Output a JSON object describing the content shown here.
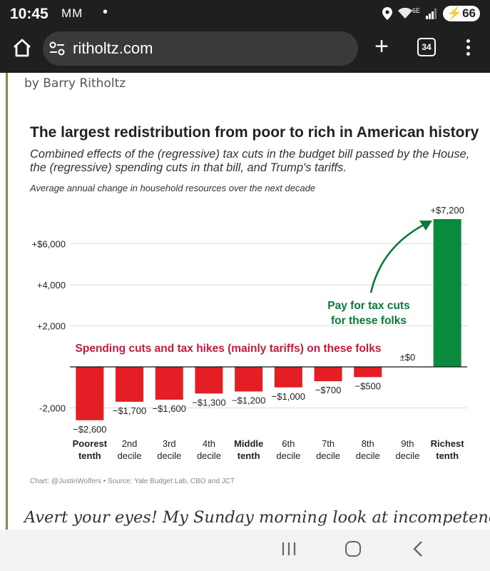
{
  "status_bar": {
    "time": "10:45",
    "left_icons": "MM",
    "dot": "•",
    "network": "6E",
    "battery": "66"
  },
  "browser": {
    "url": "ritholtz.com",
    "tab_count": "34"
  },
  "article": {
    "byline": "by Barry Ritholtz",
    "body_start": "Avert your eyes! My Sunday morning look at incompetence,"
  },
  "chart_data": {
    "type": "bar",
    "title": "The largest redistribution from poor to rich in American history",
    "subtitle": "Combined effects of the (regressive) tax cuts in the budget bill passed by the House, the (regressive) spending cuts in that bill, and Trump's tariffs.",
    "ylabel": "Average annual change in household resources over the next decade",
    "ylim": [
      -3200,
      7400
    ],
    "yticks": [
      -2000,
      2000,
      4000,
      6000
    ],
    "ytick_labels": [
      "-2,000",
      "+2,000",
      "+4,000",
      "+$6,000"
    ],
    "grid": "horizontal",
    "categories": [
      {
        "line1": "Poorest",
        "line2": "tenth",
        "bold": true
      },
      {
        "line1": "2nd",
        "line2": "decile",
        "bold": false
      },
      {
        "line1": "3rd",
        "line2": "decile",
        "bold": false
      },
      {
        "line1": "4th",
        "line2": "decile",
        "bold": false
      },
      {
        "line1": "Middle",
        "line2": "tenth",
        "bold": true
      },
      {
        "line1": "6th",
        "line2": "decile",
        "bold": false
      },
      {
        "line1": "7th",
        "line2": "decile",
        "bold": false
      },
      {
        "line1": "8th",
        "line2": "decile",
        "bold": false
      },
      {
        "line1": "9th",
        "line2": "decile",
        "bold": false
      },
      {
        "line1": "Richest",
        "line2": "tenth",
        "bold": true
      }
    ],
    "values": [
      -2600,
      -1700,
      -1600,
      -1300,
      -1200,
      -1000,
      -700,
      -500,
      0,
      7200
    ],
    "value_labels": [
      "−$2,600",
      "−$1,700",
      "−$1,600",
      "−$1,300",
      "−$1,200",
      "−$1,000",
      "−$700",
      "−$500",
      "±$0",
      "+$7,200"
    ],
    "annotations": {
      "negative": "Spending cuts and tax hikes (mainly tariffs) on these folks",
      "positive_line1": "Pay for tax cuts",
      "positive_line2": "for these folks"
    },
    "colors": {
      "negative": "#e31e24",
      "positive": "#0a8a3c",
      "negative_text": "#c8193f",
      "positive_text": "#0a7a36"
    },
    "source": "Chart: @JustinWolfers • Source: Yale Budget Lab, CBO and JCT"
  }
}
